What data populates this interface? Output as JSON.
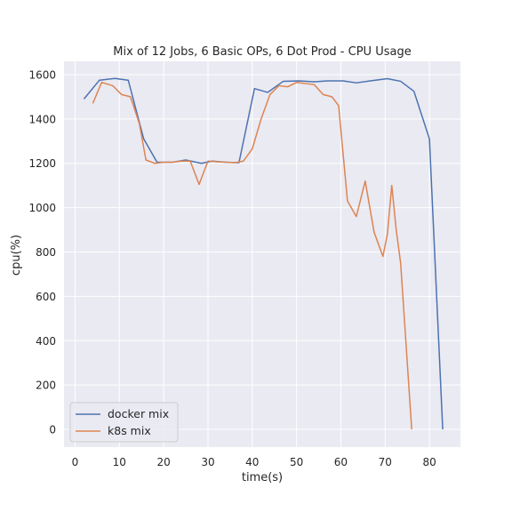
{
  "chart_data": {
    "type": "line",
    "title": "Mix of 12 Jobs, 6 Basic OPs, 6 Dot Prod - CPU Usage",
    "xlabel": "time(s)",
    "ylabel": "cpu(%)",
    "xlim": [
      -2.5,
      87
    ],
    "ylim": [
      -80,
      1660
    ],
    "xticks": [
      0,
      10,
      20,
      30,
      40,
      50,
      60,
      70,
      80
    ],
    "xtick_labels": [
      "0",
      "10",
      "20",
      "30",
      "40",
      "50",
      "60",
      "70",
      "80"
    ],
    "yticks": [
      0,
      200,
      400,
      600,
      800,
      1000,
      1200,
      1400,
      1600
    ],
    "ytick_labels": [
      "0",
      "200",
      "400",
      "600",
      "800",
      "1000",
      "1200",
      "1400",
      "1600"
    ],
    "grid": true,
    "legend_position": "lower-left",
    "colors": {
      "background": "#eaeaf2",
      "grid": "#ffffff",
      "docker mix": "#4c72b0",
      "k8s mix": "#dd8452"
    },
    "series": [
      {
        "name": "docker mix",
        "x": [
          2,
          5.5,
          9,
          12,
          15.5,
          18.5,
          22,
          25,
          28.5,
          31,
          34,
          37,
          40.5,
          43.5,
          47,
          50.5,
          54,
          57,
          60.5,
          63.5,
          67,
          70.5,
          73.5,
          76.5,
          80,
          83
        ],
        "y": [
          1490,
          1575,
          1583,
          1575,
          1310,
          1205,
          1205,
          1215,
          1200,
          1210,
          1205,
          1203,
          1537,
          1520,
          1570,
          1572,
          1568,
          1572,
          1572,
          1563,
          1573,
          1582,
          1570,
          1525,
          1310,
          0
        ]
      },
      {
        "name": "k8s mix",
        "x": [
          4,
          6,
          8.5,
          10.5,
          12.5,
          14.5,
          16,
          18,
          20,
          22,
          24,
          26,
          28,
          30,
          32,
          34,
          36,
          38,
          40,
          42,
          44,
          46,
          48,
          50,
          52,
          54,
          56,
          58,
          59.5,
          61.5,
          63.5,
          65.5,
          67.5,
          69.5,
          70.5,
          71.5,
          72.5,
          73.5,
          76
        ],
        "y": [
          1470,
          1565,
          1550,
          1510,
          1500,
          1380,
          1215,
          1200,
          1205,
          1205,
          1210,
          1210,
          1105,
          1210,
          1207,
          1205,
          1203,
          1210,
          1265,
          1400,
          1510,
          1550,
          1545,
          1565,
          1560,
          1555,
          1510,
          1500,
          1460,
          1030,
          960,
          1120,
          890,
          780,
          880,
          1100,
          900,
          750,
          0
        ]
      }
    ]
  }
}
